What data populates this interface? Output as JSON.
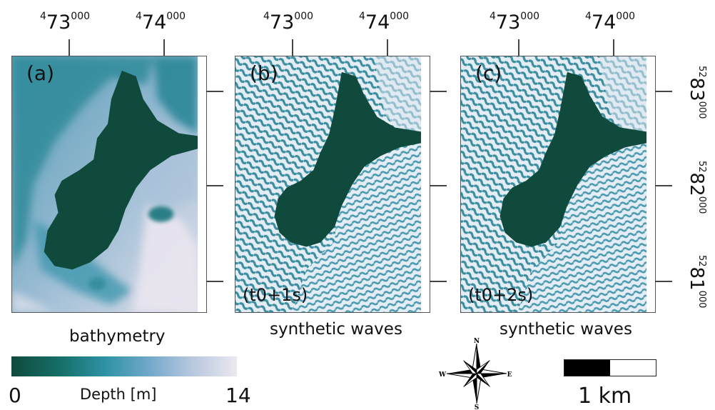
{
  "x_coords": [
    {
      "pre": "4",
      "main": "73",
      "post": "000"
    },
    {
      "pre": "4",
      "main": "74",
      "post": "000"
    }
  ],
  "y_coords": [
    {
      "pre": "52",
      "main": "83",
      "post": "000"
    },
    {
      "pre": "52",
      "main": "82",
      "post": "000"
    },
    {
      "pre": "52",
      "main": "81",
      "post": "000"
    }
  ],
  "panels": [
    {
      "label": "(a)",
      "time": "",
      "caption": "bathymetry",
      "kind": "bathymetry"
    },
    {
      "label": "(b)",
      "time": "(t0+1s)",
      "caption": "synthetic waves",
      "kind": "waves"
    },
    {
      "label": "(c)",
      "time": "(t0+2s)",
      "caption": "synthetic waves",
      "kind": "waves"
    }
  ],
  "colorbar": {
    "min_label": "0",
    "max_label": "14",
    "title": "Depth [m]",
    "colors": [
      "#0f4a3c",
      "#16706a",
      "#2f93a6",
      "#6ea6c8",
      "#b0c4dd",
      "#ece8f0"
    ]
  },
  "compass": {
    "n": "N",
    "e": "E",
    "s": "S",
    "w": "W"
  },
  "scale_bar": {
    "label": "1 km"
  },
  "colors": {
    "land": "#0f4a3c",
    "wave_light": "#e4ecf4",
    "wave_dark": "#3b8ea0"
  }
}
